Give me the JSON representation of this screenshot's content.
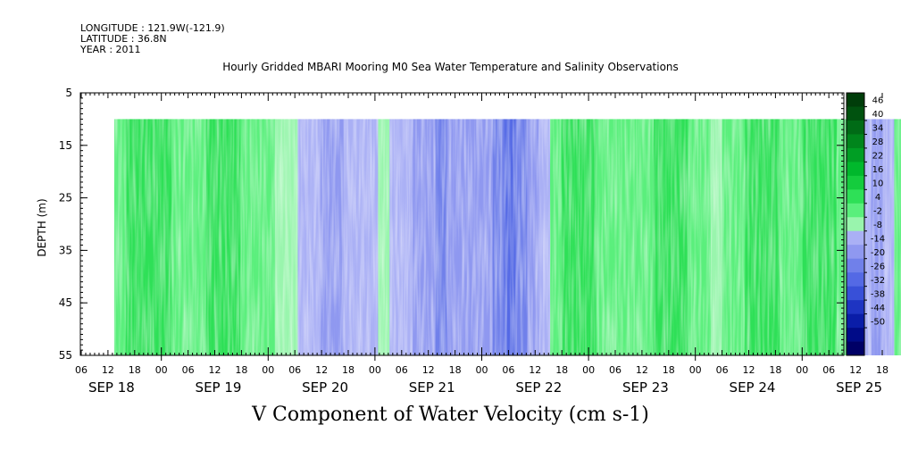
{
  "header": {
    "longitude": "LONGITUDE : 121.9W(-121.9)",
    "latitude": "LATITUDE : 36.8N",
    "year": "YEAR : 2011"
  },
  "chart_data": {
    "type": "heatmap",
    "title": "Hourly Gridded MBARI Mooring M0 Sea Water Temperature and Salinity Observations",
    "xlabel": "V Component of Water Velocity (cm s-1)",
    "ylabel": "DEPTH (m)",
    "ylim": [
      55,
      5
    ],
    "yticks": [
      5,
      15,
      25,
      35,
      45,
      55
    ],
    "data_depth_range": [
      10,
      55
    ],
    "hour_tick_labels": [
      "06",
      "12",
      "18",
      "00",
      "06",
      "12",
      "18",
      "00",
      "06",
      "12",
      "18",
      "00",
      "06",
      "12",
      "18",
      "00",
      "06",
      "12",
      "18",
      "00",
      "06",
      "12",
      "18",
      "00",
      "06",
      "12",
      "18",
      "00",
      "06",
      "12",
      "18",
      "00",
      "06"
    ],
    "day_labels": [
      {
        "label": "SEP 18",
        "tick_index": 1
      },
      {
        "label": "SEP 19",
        "tick_index": 5
      },
      {
        "label": "SEP 20",
        "tick_index": 9
      },
      {
        "label": "SEP 21",
        "tick_index": 13
      },
      {
        "label": "SEP 22",
        "tick_index": 17
      },
      {
        "label": "SEP 23",
        "tick_index": 21
      },
      {
        "label": "SEP 24",
        "tick_index": 25
      },
      {
        "label": "SEP 25",
        "tick_index": 29
      }
    ],
    "data_start_tick": 1,
    "data_end_tick": 32,
    "column_values": [
      6,
      10,
      12,
      12,
      10,
      7,
      5,
      8,
      12,
      14,
      12,
      9,
      7,
      4,
      2,
      0,
      -2,
      -6,
      -8,
      -9,
      -7,
      -4,
      -2,
      -1,
      -3,
      -6,
      -9,
      -12,
      -14,
      -12,
      -10,
      -8,
      -12,
      -16,
      -18,
      -16,
      -12,
      -4,
      4,
      10,
      12,
      10,
      8,
      7,
      5,
      4,
      7,
      10,
      12,
      11,
      9,
      6,
      3,
      5,
      8,
      11,
      13,
      11,
      9,
      8,
      10,
      12,
      10,
      6,
      2,
      -4,
      -8,
      -6,
      4,
      9,
      12,
      10
    ],
    "colorbar": {
      "labels": [
        46,
        40,
        34,
        28,
        22,
        16,
        10,
        4,
        -2,
        -8,
        -14,
        -20,
        -26,
        -32,
        -38,
        -44,
        -50
      ],
      "colors": [
        "#003d0a",
        "#00520f",
        "#006b16",
        "#00851c",
        "#009e24",
        "#00b82c",
        "#14cc3d",
        "#2ee057",
        "#5aef7c",
        "#99f5ad",
        "#aab0f5",
        "#8f98f0",
        "#7080ea",
        "#5469e5",
        "#3850d8",
        "#1e34c2",
        "#0a1da8",
        "#000b88",
        "#000066"
      ]
    }
  }
}
